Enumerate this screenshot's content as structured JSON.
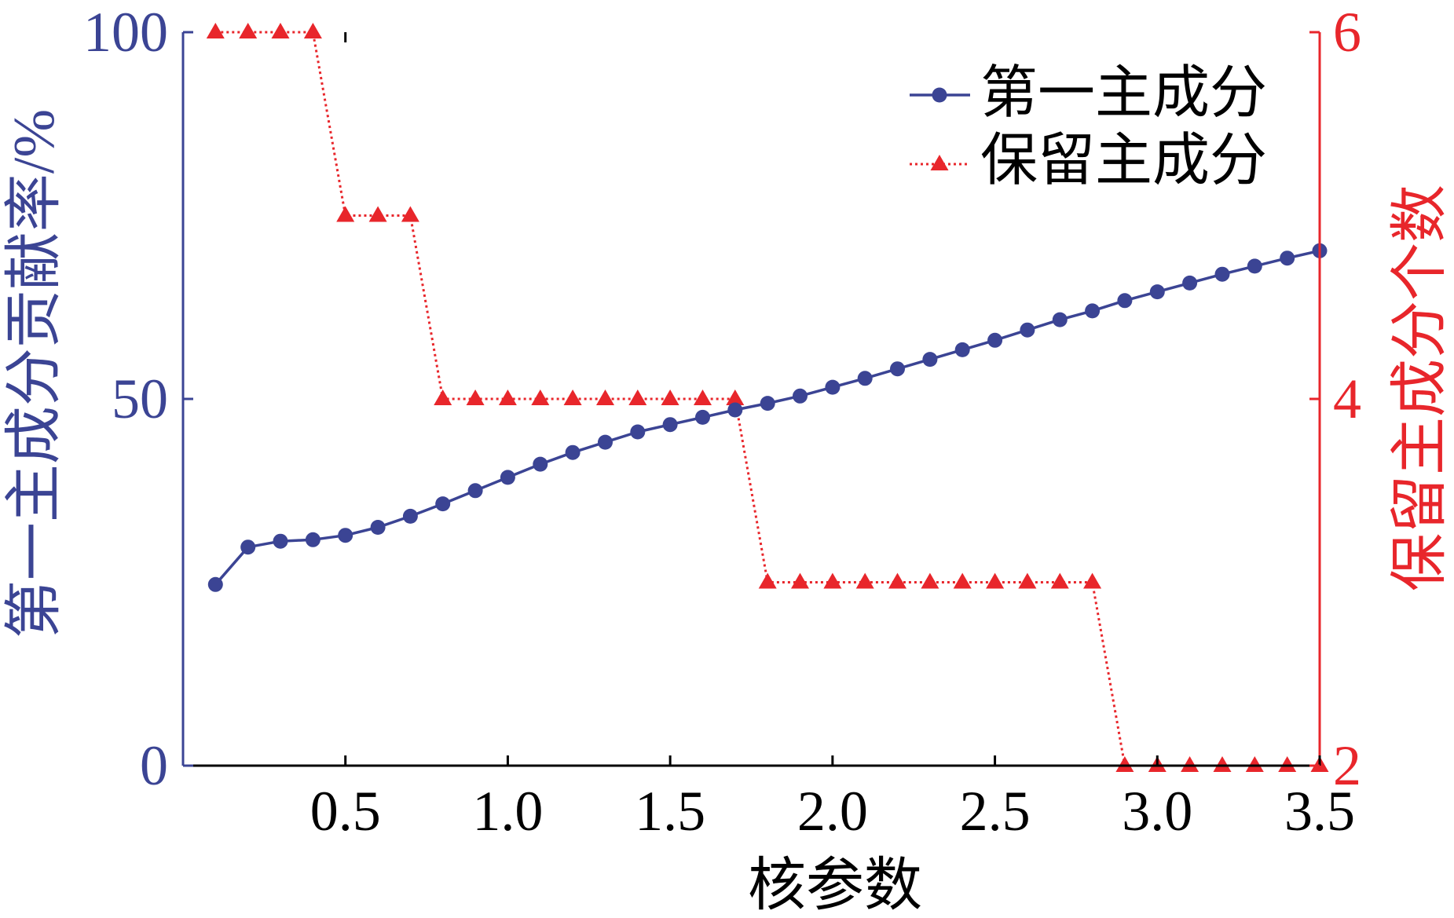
{
  "chart_data": {
    "type": "line",
    "xlabel": "核参数",
    "xlim": [
      0,
      3.5
    ],
    "xticks": [
      "0.5",
      "1.0",
      "1.5",
      "2.0",
      "2.5",
      "3.0",
      "3.5"
    ],
    "x": [
      0.1,
      0.2,
      0.3,
      0.4,
      0.5,
      0.6,
      0.7,
      0.8,
      0.9,
      1.0,
      1.1,
      1.2,
      1.3,
      1.4,
      1.5,
      1.6,
      1.7,
      1.8,
      1.9,
      2.0,
      2.1,
      2.2,
      2.3,
      2.4,
      2.5,
      2.6,
      2.7,
      2.8,
      2.9,
      3.0,
      3.1,
      3.2,
      3.3,
      3.4,
      3.5
    ],
    "y_left": {
      "label": "第一主成分贡献率/%",
      "lim": [
        0,
        100
      ],
      "ticks": [
        "0",
        "50",
        "100"
      ],
      "color": "#3b4494"
    },
    "y_right": {
      "label": "保留主成分个数",
      "lim": [
        2,
        6
      ],
      "ticks": [
        "2",
        "4",
        "6"
      ],
      "color": "#e8262b"
    },
    "series": [
      {
        "name": "第一主成分",
        "axis": "left",
        "color": "#3b4494",
        "marker": "circle",
        "line_style": "solid",
        "values": [
          24.7,
          29.8,
          30.6,
          30.8,
          31.4,
          32.5,
          34.0,
          35.7,
          37.5,
          39.3,
          41.1,
          42.7,
          44.1,
          45.5,
          46.5,
          47.5,
          48.5,
          49.4,
          50.4,
          51.6,
          52.8,
          54.1,
          55.4,
          56.7,
          58.0,
          59.4,
          60.8,
          62.0,
          63.4,
          64.6,
          65.8,
          67.0,
          68.1,
          69.2,
          70.2
        ]
      },
      {
        "name": "保留主成分",
        "axis": "right",
        "color": "#e8262b",
        "marker": "triangle",
        "line_style": "dotted",
        "values": [
          6,
          6,
          6,
          6,
          5,
          5,
          5,
          4,
          4,
          4,
          4,
          4,
          4,
          4,
          4,
          4,
          4,
          3,
          3,
          3,
          3,
          3,
          3,
          3,
          3,
          3,
          3,
          3,
          2,
          2,
          2,
          2,
          2,
          2,
          2
        ]
      }
    ],
    "legend": {
      "position": "top-right"
    },
    "grid": false
  }
}
